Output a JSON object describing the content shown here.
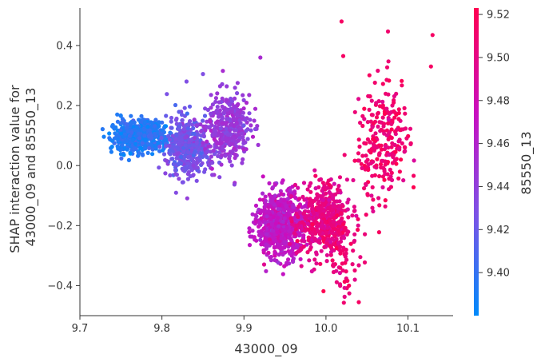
{
  "chart_data": {
    "type": "scatter",
    "title": "",
    "xlabel": "43000_09",
    "ylabel_lines": [
      "SHAP interaction value for",
      "43000_09 and 85550_13"
    ],
    "colorbar_label": "85550_13",
    "xlim": [
      9.7,
      10.155
    ],
    "ylim": [
      -0.5,
      0.525
    ],
    "x_ticks": [
      9.7,
      9.8,
      9.9,
      10.0,
      10.1
    ],
    "x_tick_labels": [
      "9.7",
      "9.8",
      "9.9",
      "10.0",
      "10.1"
    ],
    "y_ticks": [
      0.4,
      0.2,
      0.0,
      -0.2,
      -0.4
    ],
    "y_tick_labels": [
      "0.4",
      "0.2",
      "0.0",
      "−0.2",
      "−0.4"
    ],
    "colorbar_range": [
      9.38,
      9.523
    ],
    "colorbar_ticks": [
      9.52,
      9.5,
      9.48,
      9.46,
      9.44,
      9.42,
      9.4
    ],
    "colorbar_tick_labels": [
      "9.52",
      "9.50",
      "9.48",
      "9.46",
      "9.44",
      "9.42",
      "9.40"
    ],
    "colormap": [
      "#008afb",
      "#7c52e6",
      "#c90ebf",
      "#ff0051"
    ],
    "grid": false,
    "clusters": [
      {
        "x_center": 9.77,
        "x_spread": 0.03,
        "y_center": 0.1,
        "y_spread": 0.025,
        "slope": 0.05,
        "count": 600,
        "color_value": 9.395
      },
      {
        "x_center": 9.83,
        "x_spread": 0.022,
        "y_center": 0.06,
        "y_spread": 0.05,
        "slope": 0.0,
        "count": 400,
        "color_value": 9.425
      },
      {
        "x_center": 9.88,
        "x_spread": 0.025,
        "y_center": 0.12,
        "y_spread": 0.06,
        "slope": 0.5,
        "count": 380,
        "color_value": 9.445
      },
      {
        "x_center": 9.945,
        "x_spread": 0.025,
        "y_center": -0.2,
        "y_spread": 0.055,
        "slope": 0.0,
        "count": 700,
        "color_value": 9.47
      },
      {
        "x_center": 9.995,
        "x_spread": 0.028,
        "y_center": -0.18,
        "y_spread": 0.06,
        "slope": 0.4,
        "count": 450,
        "color_value": 9.5
      },
      {
        "x_center": 10.02,
        "x_spread": 0.02,
        "y_center": -0.28,
        "y_spread": 0.07,
        "slope": 0.0,
        "count": 100,
        "color_value": 9.505
      },
      {
        "x_center": 10.07,
        "x_spread": 0.028,
        "y_center": 0.08,
        "y_spread": 0.1,
        "slope": 1.5,
        "count": 260,
        "color_value": 9.51
      }
    ],
    "outliers": [
      {
        "x": 10.019,
        "y": 0.48
      },
      {
        "x": 10.13,
        "y": 0.435
      },
      {
        "x": 10.021,
        "y": 0.365
      },
      {
        "x": 10.128,
        "y": 0.33
      },
      {
        "x": 10.04,
        "y": -0.455
      },
      {
        "x": 10.028,
        "y": -0.4
      },
      {
        "x": 9.92,
        "y": 0.36
      },
      {
        "x": 9.85,
        "y": 0.305
      },
      {
        "x": 9.83,
        "y": 0.28
      }
    ]
  }
}
